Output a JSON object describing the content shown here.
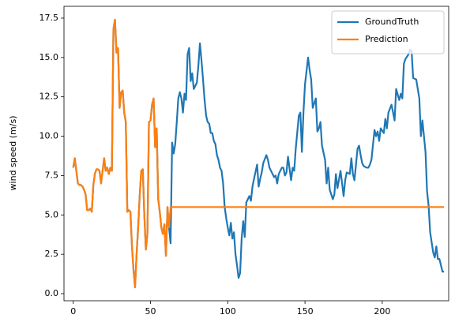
{
  "chart_data": {
    "type": "line",
    "ylabel": "wind speed (m/s)",
    "legend": "upper right",
    "xlim": [
      -6,
      243
    ],
    "ylim": [
      -0.45,
      18.25
    ],
    "xticks": [
      0,
      50,
      100,
      150,
      200
    ],
    "yticks": [
      {
        "value": 0,
        "label": "0.0"
      },
      {
        "value": 2.5,
        "label": "2.5"
      },
      {
        "value": 5,
        "label": "5.0"
      },
      {
        "value": 7.5,
        "label": "7.5"
      },
      {
        "value": 10,
        "label": "10.0"
      },
      {
        "value": 12.5,
        "label": "12.5"
      },
      {
        "value": 15,
        "label": "15.0"
      },
      {
        "value": 17.5,
        "label": "17.5"
      }
    ],
    "x": [
      0,
      1,
      2,
      3,
      4,
      5,
      6,
      7,
      8,
      9,
      10,
      11,
      12,
      13,
      14,
      15,
      16,
      17,
      18,
      19,
      20,
      21,
      22,
      23,
      24,
      25,
      26,
      27,
      28,
      29,
      30,
      31,
      32,
      33,
      34,
      35,
      36,
      37,
      38,
      39,
      40,
      41,
      42,
      43,
      44,
      45,
      46,
      47,
      48,
      49,
      50,
      51,
      52,
      53,
      54,
      55,
      56,
      57,
      58,
      59,
      60,
      61,
      62,
      63,
      64,
      65,
      66,
      67,
      68,
      69,
      70,
      71,
      72,
      73,
      74,
      75,
      76,
      77,
      78,
      79,
      80,
      81,
      82,
      83,
      84,
      85,
      86,
      87,
      88,
      89,
      90,
      91,
      92,
      93,
      94,
      95,
      96,
      97,
      98,
      99,
      100,
      101,
      102,
      103,
      104,
      105,
      106,
      107,
      108,
      109,
      110,
      111,
      112,
      114,
      115,
      116,
      117,
      119,
      120,
      121,
      122,
      123,
      125,
      126,
      127,
      128,
      130,
      131,
      132,
      133,
      135,
      136,
      137,
      138,
      139,
      141,
      142,
      143,
      144,
      146,
      147,
      148,
      149,
      150,
      152,
      153,
      154,
      155,
      157,
      158,
      159,
      160,
      161,
      163,
      164,
      165,
      166,
      168,
      169,
      170,
      171,
      173,
      174,
      175,
      176,
      177,
      179,
      180,
      181,
      182,
      184,
      185,
      186,
      187,
      188,
      190,
      191,
      192,
      193,
      195,
      196,
      197,
      198,
      199,
      201,
      202,
      203,
      204,
      206,
      207,
      208,
      209,
      211,
      212,
      213,
      214,
      215,
      217,
      218,
      219,
      220,
      222,
      223,
      224,
      225,
      226,
      228,
      229,
      230,
      231,
      233,
      234,
      235,
      236,
      237,
      239,
      240
    ],
    "series": [
      {
        "name": "GroundTruth",
        "color": "#1f77b4",
        "values": [
          8.0,
          8.6,
          7.8,
          7.0,
          6.9,
          6.9,
          6.8,
          6.6,
          6.3,
          5.3,
          5.3,
          5.4,
          5.2,
          6.9,
          7.6,
          7.9,
          7.9,
          7.8,
          7.0,
          7.8,
          8.6,
          7.8,
          8.0,
          7.6,
          8.0,
          7.8,
          16.8,
          17.4,
          15.3,
          15.6,
          11.8,
          12.8,
          12.9,
          11.5,
          10.9,
          5.2,
          5.3,
          5.2,
          3.0,
          1.5,
          0.4,
          2.5,
          4.2,
          6.2,
          7.8,
          7.9,
          5.0,
          2.8,
          3.8,
          10.9,
          11.0,
          12.0,
          12.4,
          9.3,
          10.5,
          6.0,
          5.2,
          4.2,
          3.8,
          4.4,
          2.4,
          5.5,
          4.2,
          3.2,
          9.6,
          8.9,
          9.5,
          10.9,
          12.4,
          12.8,
          12.4,
          11.5,
          12.7,
          12.3,
          15.2,
          15.6,
          13.5,
          14.0,
          13.0,
          13.2,
          13.4,
          14.5,
          15.9,
          14.8,
          13.6,
          12.3,
          11.3,
          10.9,
          10.8,
          10.2,
          10.2,
          9.7,
          9.5,
          8.8,
          8.5,
          8.0,
          7.8,
          7.0,
          5.5,
          4.8,
          4.2,
          3.7,
          4.5,
          3.5,
          3.9,
          2.5,
          1.8,
          1.0,
          1.3,
          3.5,
          4.6,
          3.6,
          5.8,
          6.2,
          5.9,
          6.8,
          7.3,
          8.2,
          6.8,
          7.3,
          7.7,
          8.3,
          8.8,
          8.5,
          8.0,
          7.8,
          7.4,
          7.5,
          7.0,
          7.6,
          8.0,
          8.0,
          7.5,
          7.7,
          8.7,
          7.2,
          8.0,
          7.8,
          9.2,
          11.3,
          11.5,
          9.0,
          11.5,
          13.3,
          15.0,
          14.2,
          13.6,
          11.8,
          12.4,
          10.3,
          10.5,
          10.9,
          9.4,
          8.5,
          7.0,
          8.0,
          6.6,
          6.0,
          6.3,
          7.6,
          6.7,
          7.8,
          7.0,
          6.2,
          7.2,
          7.7,
          7.6,
          8.6,
          7.6,
          7.2,
          9.2,
          9.4,
          8.8,
          8.3,
          8.1,
          8.0,
          8.0,
          8.2,
          8.5,
          10.4,
          10.0,
          10.3,
          9.7,
          10.5,
          10.2,
          11.1,
          10.5,
          11.5,
          12.0,
          11.5,
          11.0,
          13.0,
          12.3,
          12.7,
          12.4,
          14.6,
          14.9,
          15.2,
          15.5,
          15.4,
          13.7,
          13.6,
          13.0,
          12.4,
          10.0,
          11.0,
          9.0,
          6.5,
          5.6,
          3.9,
          2.6,
          2.3,
          3.0,
          2.2,
          2.2,
          1.4,
          1.4
        ]
      },
      {
        "name": "Prediction",
        "color": "#ff7f0e",
        "values": [
          8.0,
          8.6,
          7.8,
          7.0,
          6.9,
          6.9,
          6.8,
          6.6,
          6.3,
          5.3,
          5.3,
          5.4,
          5.2,
          6.9,
          7.6,
          7.9,
          7.9,
          7.8,
          7.0,
          7.8,
          8.6,
          7.8,
          8.0,
          7.6,
          8.0,
          7.8,
          16.8,
          17.4,
          15.3,
          15.6,
          11.8,
          12.8,
          12.9,
          11.5,
          10.9,
          5.2,
          5.3,
          5.2,
          3.0,
          1.5,
          0.4,
          2.5,
          4.2,
          6.2,
          7.8,
          7.9,
          5.0,
          2.8,
          3.8,
          10.9,
          11.0,
          12.0,
          12.4,
          9.3,
          10.5,
          6.0,
          5.2,
          4.2,
          3.8,
          4.4,
          2.4,
          5.5,
          4.2,
          5.5,
          5.5,
          5.5,
          5.5,
          5.5,
          5.5,
          5.5,
          5.5,
          5.5,
          5.5,
          5.5,
          5.5,
          5.5,
          5.5,
          5.5,
          5.5,
          5.5,
          5.5,
          5.5,
          5.5,
          5.5,
          5.5,
          5.5,
          5.5,
          5.5,
          5.5,
          5.5,
          5.5,
          5.5,
          5.5,
          5.5,
          5.5,
          5.5,
          5.5,
          5.5,
          5.5,
          5.5,
          5.5,
          5.5,
          5.5,
          5.5,
          5.5,
          5.5,
          5.5,
          5.5,
          5.5,
          5.5,
          5.5,
          5.5,
          5.5,
          5.5,
          5.5,
          5.5,
          5.5,
          5.5,
          5.5,
          5.5,
          5.5,
          5.5,
          5.5,
          5.5,
          5.5,
          5.5,
          5.5,
          5.5,
          5.5,
          5.5,
          5.5,
          5.5,
          5.5,
          5.5,
          5.5,
          5.5,
          5.5,
          5.5,
          5.5,
          5.5,
          5.5,
          5.5,
          5.5,
          5.5,
          5.5,
          5.5,
          5.5,
          5.5,
          5.5,
          5.5,
          5.5,
          5.5,
          5.5,
          5.5,
          5.5,
          5.5,
          5.5,
          5.5,
          5.5,
          5.5,
          5.5,
          5.5,
          5.5,
          5.5,
          5.5,
          5.5,
          5.5,
          5.5,
          5.5,
          5.5,
          5.5,
          5.5,
          5.5,
          5.5,
          5.5,
          5.5,
          5.5,
          5.5,
          5.5,
          5.5,
          5.5,
          5.5,
          5.5,
          5.5,
          5.5,
          5.5,
          5.5,
          5.5,
          5.5,
          5.5,
          5.5,
          5.5,
          5.5,
          5.5,
          5.5,
          5.5,
          5.5,
          5.5,
          5.5,
          5.5,
          5.5,
          5.5,
          5.5,
          5.5,
          5.5,
          5.5,
          5.5,
          5.5,
          5.5,
          5.5,
          5.5,
          5.5,
          5.5,
          5.5,
          5.5,
          5.5,
          5.5
        ]
      }
    ]
  }
}
